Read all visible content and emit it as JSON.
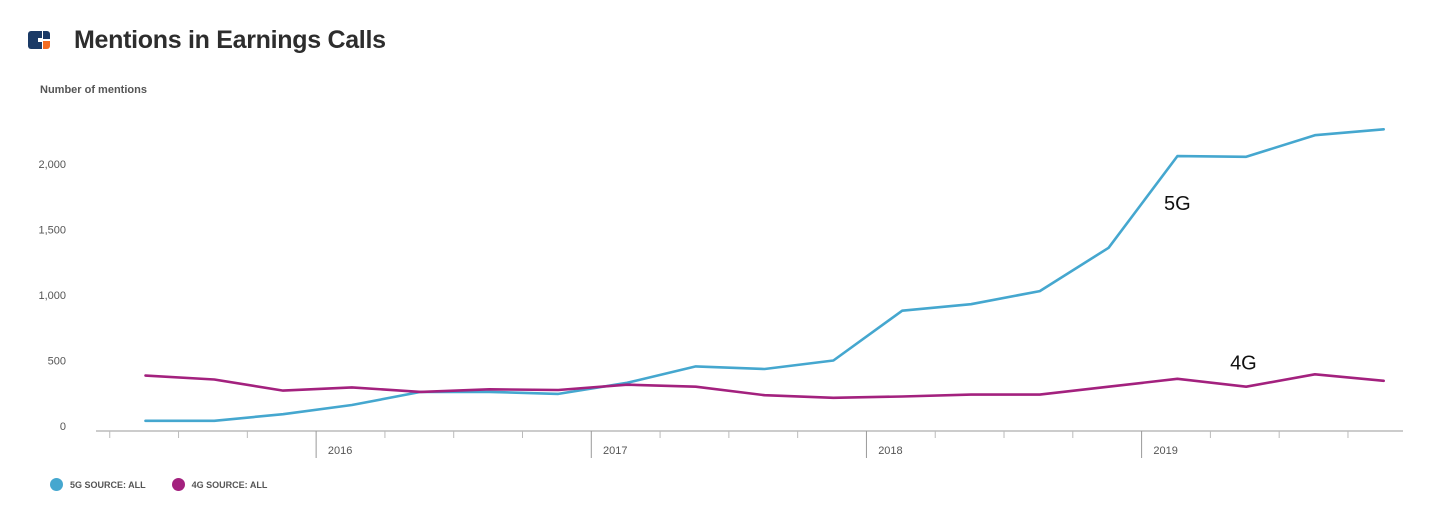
{
  "header": {
    "title": "Mentions in Earnings Calls",
    "logo_icon": "company-logo-icon"
  },
  "chart_data": {
    "type": "line",
    "ylabel": "Number of mentions",
    "ylim": [
      0,
      2400
    ],
    "yticks": [
      0,
      500,
      1000,
      1500,
      2000
    ],
    "ytick_labels": [
      "0",
      "500",
      "1,000",
      "1,500",
      "2,000"
    ],
    "xlim": [
      2015.2,
      2019.95
    ],
    "year_ticks": [
      2016,
      2017,
      2018,
      2019
    ],
    "year_labels": [
      "2016",
      "2017",
      "2018",
      "2019"
    ],
    "minor_ticks": [
      2015.25,
      2015.5,
      2015.75,
      2016.25,
      2016.5,
      2016.75,
      2017.25,
      2017.5,
      2017.75,
      2018.25,
      2018.5,
      2018.75,
      2019.25,
      2019.5,
      2019.75
    ],
    "grid": false,
    "legend_position": "bottom-left",
    "series": [
      {
        "name": "5G SOURCE: ALL",
        "label": "5G",
        "color": "#45a7cf",
        "x": [
          2015.38,
          2015.63,
          2015.88,
          2016.13,
          2016.38,
          2016.63,
          2016.88,
          2017.13,
          2017.38,
          2017.63,
          2017.88,
          2018.13,
          2018.38,
          2018.63,
          2018.88,
          2019.13,
          2019.38,
          2019.63,
          2019.88
        ],
        "values": [
          40,
          40,
          90,
          160,
          260,
          260,
          245,
          330,
          455,
          435,
          500,
          880,
          930,
          1030,
          1360,
          2060,
          2055,
          2220,
          2265
        ]
      },
      {
        "name": "4G SOURCE: ALL",
        "label": "4G",
        "color": "#a3217e",
        "x": [
          2015.38,
          2015.63,
          2015.88,
          2016.13,
          2016.38,
          2016.63,
          2016.88,
          2017.13,
          2017.38,
          2017.63,
          2017.88,
          2018.13,
          2018.38,
          2018.63,
          2018.88,
          2019.13,
          2019.38,
          2019.63,
          2019.88
        ],
        "values": [
          385,
          355,
          270,
          295,
          260,
          280,
          275,
          315,
          300,
          235,
          215,
          225,
          240,
          240,
          300,
          360,
          300,
          395,
          345
        ]
      }
    ],
    "annotations": [
      {
        "text": "5G",
        "x": 2019.13,
        "y": 1650
      },
      {
        "text": "4G",
        "x": 2019.37,
        "y": 430
      }
    ]
  },
  "legend": {
    "items": [
      {
        "label": "5G SOURCE: ALL",
        "color": "#45a7cf"
      },
      {
        "label": "4G SOURCE: ALL",
        "color": "#a3217e"
      }
    ]
  }
}
